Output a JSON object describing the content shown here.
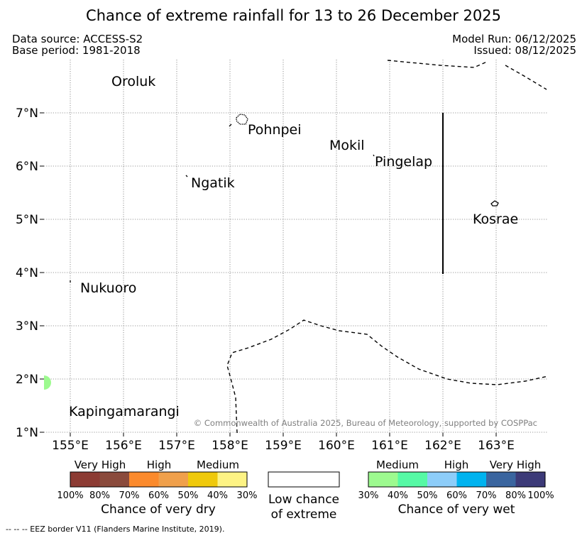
{
  "header": {
    "title": "Chance of extreme rainfall for 13 to 26 December 2025",
    "data_source": "Data source: ACCESS-S2",
    "base_period": "Base period: 1981-2018",
    "model_run": "Model Run: 06/12/2025",
    "issued": "Issued: 08/12/2025"
  },
  "map": {
    "lat_ticks": [
      "7°N",
      "6°N",
      "5°N",
      "4°N",
      "3°N",
      "2°N",
      "1°N"
    ],
    "lon_ticks": [
      "155°E",
      "156°E",
      "157°E",
      "158°E",
      "159°E",
      "160°E",
      "161°E",
      "162°E",
      "163°E"
    ],
    "places": [
      "Oroluk",
      "Pohnpei",
      "Mokil",
      "Pingelap",
      "Ngatik",
      "Kosrae",
      "Nukuoro",
      "Kapingamarangi"
    ],
    "copyright": "© Commonwealth of Australia 2025, Bureau of Meteorology, supported by COSPPac",
    "highlight_color": "#9dfa8f"
  },
  "legend": {
    "dry": {
      "category_labels": [
        "Very High",
        "High",
        "Medium"
      ],
      "tick_labels": [
        "100%",
        "80%",
        "70%",
        "60%",
        "50%",
        "40%",
        "30%"
      ],
      "colors": [
        "#8c3b33",
        "#8a4a3c",
        "#fb8a2c",
        "#f0a04b",
        "#efc90b",
        "#fdf384"
      ],
      "title": "Chance of very dry"
    },
    "low": {
      "title_line1": "Low chance",
      "title_line2": "of extreme"
    },
    "wet": {
      "category_labels": [
        "Medium",
        "High",
        "Very High"
      ],
      "tick_labels": [
        "30%",
        "40%",
        "50%",
        "60%",
        "70%",
        "80%",
        "100%"
      ],
      "colors": [
        "#9dfa8f",
        "#56f9a5",
        "#8dcdf9",
        "#00b3ef",
        "#3a659f",
        "#3c3a78"
      ],
      "title": "Chance of very wet"
    }
  },
  "footnote": "--  --  -- EEZ border V11 (Flanders Marine Institute, 2019)."
}
